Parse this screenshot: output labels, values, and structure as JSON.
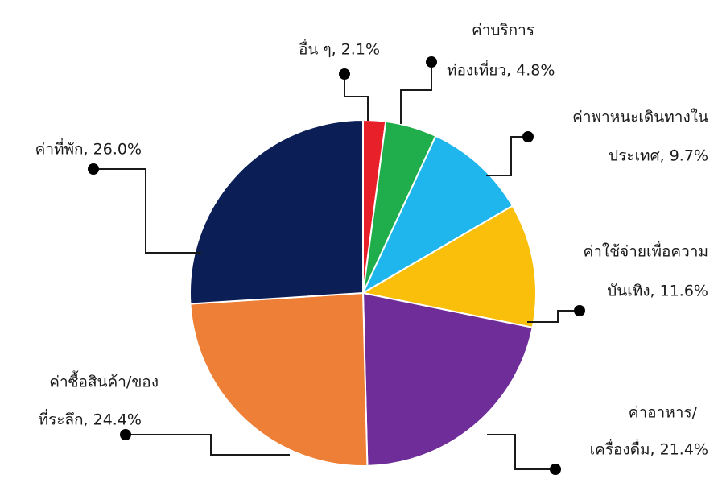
{
  "chart_data": {
    "type": "pie",
    "categories": [
      "อื่น ๆ",
      "ค่าบริการท่องเที่ยว",
      "ค่าพาหนะเดินทางในประเทศ",
      "ค่าใช้จ่ายเพื่อความบันเทิง",
      "ค่าอาหาร/เครื่องดื่ม",
      "ค่าซื้อสินค้า/ของที่ระลึก",
      "ค่าที่พัก"
    ],
    "values": [
      2.1,
      4.8,
      9.7,
      11.6,
      21.4,
      24.4,
      26.0
    ],
    "unit": "%",
    "colors": [
      "#e8202a",
      "#1fae4b",
      "#1fb6ee",
      "#f9bf0a",
      "#6e2d99",
      "#ee7f37",
      "#0b1f56"
    ],
    "data_labels": [
      [
        "อื่น ๆ, 2.1%"
      ],
      [
        "ค่าบริการ",
        "ท่องเที่ยว, 4.8%"
      ],
      [
        "ค่าพาหนะเดินทางใน",
        "ประเทศ, 9.7%"
      ],
      [
        "ค่าใช้จ่ายเพื่อความ",
        "บันเทิง, 11.6%"
      ],
      [
        "ค่าอาหาร/",
        "เครื่องดื่ม, 21.4%"
      ],
      [
        "ค่าซื้อสินค้า/ของ",
        "ที่ระลึก, 24.4%"
      ],
      [
        "ค่าที่พัก, 26.0%"
      ]
    ]
  }
}
